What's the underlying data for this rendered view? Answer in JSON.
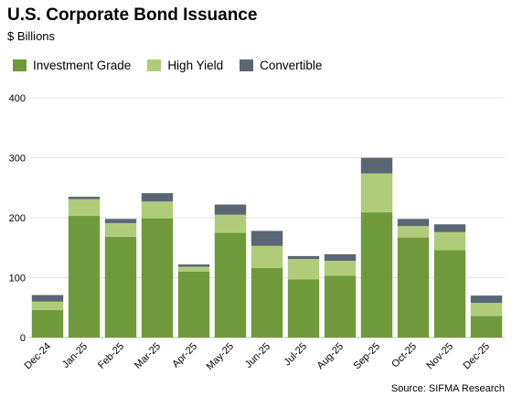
{
  "chart_data": {
    "type": "bar",
    "stacked": true,
    "title": "U.S. Corporate Bond Issuance",
    "subtitle": "$ Billions",
    "categories": [
      "Dec-24",
      "Jan-25",
      "Feb-25",
      "Mar-25",
      "Apr-25",
      "May-25",
      "Jun-25",
      "Jul-25",
      "Aug-25",
      "Sep-25",
      "Oct-25",
      "Nov-25",
      "Dec-25"
    ],
    "series": [
      {
        "name": "Investment Grade",
        "color": "#6e9a3b",
        "values": [
          46,
          203,
          168,
          199,
          110,
          175,
          116,
          97,
          103,
          209,
          167,
          146,
          36
        ]
      },
      {
        "name": "High Yield",
        "color": "#b0cc7a",
        "values": [
          14,
          28,
          23,
          28,
          8,
          30,
          37,
          34,
          25,
          65,
          19,
          30,
          22
        ]
      },
      {
        "name": "Convertible",
        "color": "#5b6675",
        "values": [
          11,
          4,
          7,
          14,
          4,
          17,
          25,
          5,
          11,
          26,
          12,
          13,
          12
        ]
      }
    ],
    "yticks": [
      0,
      100,
      200,
      300,
      400
    ],
    "ylim": [
      0,
      400
    ],
    "grid": true,
    "legend": "top-left",
    "source": "Source: SIFMA Research"
  }
}
